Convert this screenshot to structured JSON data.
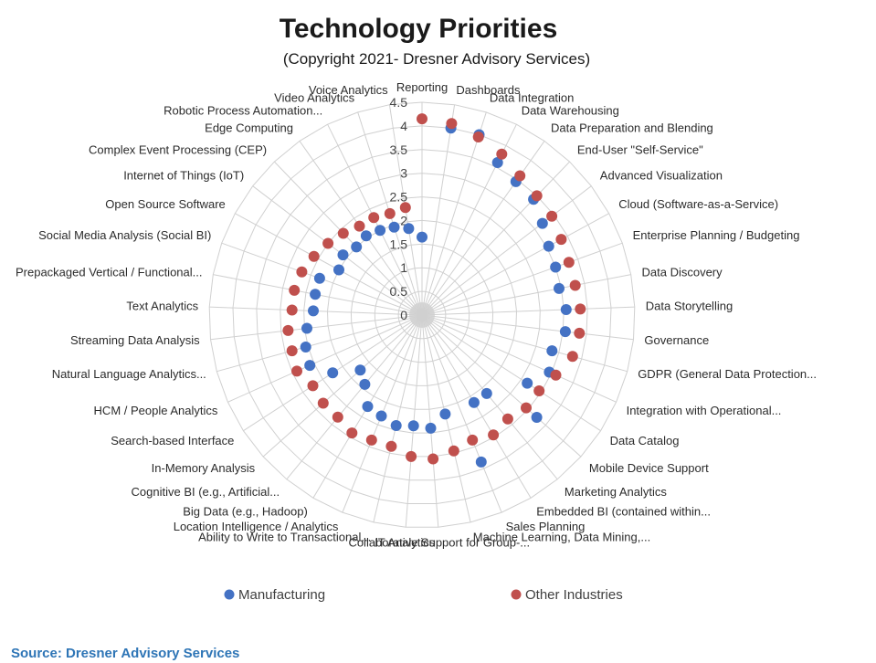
{
  "chart_data": {
    "type": "radar",
    "title": "Technology Priorities",
    "subtitle": "(Copyright 2021- Dresner Advisory Services)",
    "rlim": [
      0,
      4.5
    ],
    "r_ticks": [
      "0",
      "0.5",
      "1",
      "1.5",
      "2",
      "2.5",
      "3",
      "3.5",
      "4",
      "4.5"
    ],
    "grid": true,
    "legend_position": "bottom",
    "categories": [
      "Reporting",
      "Dashboards",
      "Data Integration",
      "Data Warehousing",
      "Data Preparation and Blending",
      "End-User \"Self-Service\"",
      "Advanced Visualization",
      "Cloud (Software-as-a-Service)",
      "Enterprise Planning / Budgeting",
      "Data Discovery",
      "Data Storytelling",
      "Governance",
      "GDPR (General Data Protection...",
      "Integration with Operational...",
      "Data Catalog",
      "Mobile Device Support",
      "Marketing Analytics",
      "Embedded BI (contained within...",
      "Sales Planning",
      "Machine Learning, Data Mining,...",
      "Collaborative Support for Group-...",
      "IT Analytics",
      "Ability to Write to Transactional...",
      "Location Intelligence / Analytics",
      "Big Data (e.g., Hadoop)",
      "Cognitive BI (e.g., Artificial...",
      "In-Memory Analysis",
      "Search-based Interface",
      "HCM / People Analytics",
      "Natural Language Analytics...",
      "Streaming Data Analysis",
      "Text Analytics",
      "Prepackaged Vertical / Functional...",
      "Social Media Analysis (Social BI)",
      "Open Source Software",
      "Internet of Things (IoT)",
      "Complex Event Processing (CEP)",
      "Edge Computing",
      "Robotic Process Automation...",
      "Video Analytics",
      "Voice Analytics"
    ],
    "series": [
      {
        "name": "Manufacturing",
        "color": "#4472c4",
        "values": [
          1.65,
          4.0,
          4.0,
          3.6,
          3.45,
          3.4,
          3.2,
          3.05,
          3.0,
          2.95,
          3.05,
          3.05,
          2.85,
          2.95,
          2.65,
          3.25,
          2.15,
          2.15,
          3.35,
          2.15,
          2.4,
          2.35,
          2.4,
          2.3,
          2.25,
          1.9,
          1.75,
          2.25,
          2.6,
          2.55,
          2.45,
          2.3,
          2.3,
          2.3,
          2.0,
          2.1,
          2.0,
          2.05,
          2.0,
          1.95,
          1.85
        ]
      },
      {
        "name": "Other Industries",
        "color": "#c0504d",
        "values": [
          4.15,
          4.1,
          3.95,
          3.8,
          3.6,
          3.5,
          3.45,
          3.35,
          3.3,
          3.3,
          3.35,
          3.35,
          3.3,
          3.1,
          2.95,
          2.95,
          2.85,
          2.95,
          2.85,
          2.95,
          3.05,
          3.0,
          2.85,
          2.85,
          2.9,
          2.8,
          2.8,
          2.75,
          2.9,
          2.85,
          2.85,
          2.75,
          2.75,
          2.7,
          2.6,
          2.5,
          2.4,
          2.3,
          2.3,
          2.25,
          2.3
        ]
      }
    ]
  },
  "source": "Source: Dresner Advisory Services"
}
